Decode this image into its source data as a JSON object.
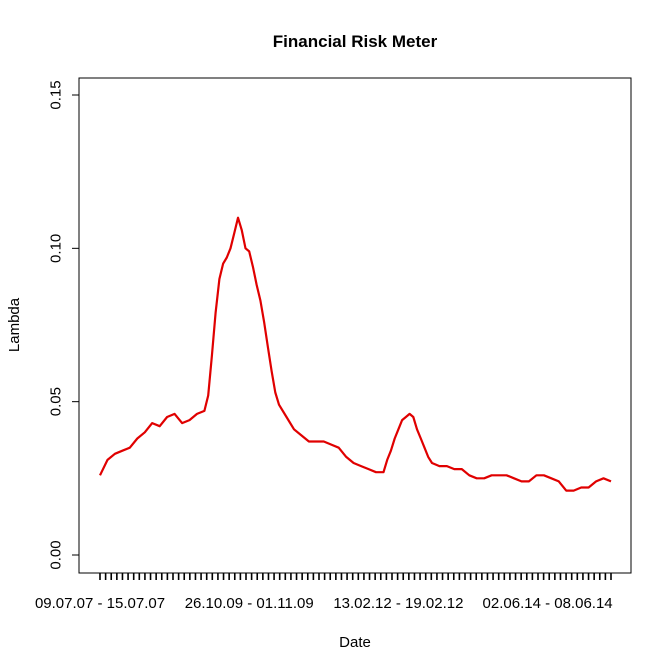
{
  "chart_data": {
    "type": "line",
    "title": "Financial Risk Meter",
    "xlabel": "Date",
    "ylabel": "Lambda",
    "ylim": [
      -0.005,
      0.155
    ],
    "y_ticks": [
      "0.00",
      "0.05",
      "0.10",
      "0.15"
    ],
    "y_tick_values": [
      0.0,
      0.05,
      0.1,
      0.15
    ],
    "x_tick_labels": [
      "09.07.07 - 15.07.07",
      "26.10.09 - 01.11.09",
      "13.02.12 - 19.02.12",
      "02.06.14 - 08.06.14"
    ],
    "x_tick_values": [
      "2007-07-09",
      "2009-10-26",
      "2012-02-13",
      "2014-06-02"
    ],
    "x_minor_tick_count": 92,
    "grid": false,
    "series": [
      {
        "color": "#e00000",
        "points": [
          [
            "2007-07-09",
            0.026
          ],
          [
            "2007-08-20",
            0.031
          ],
          [
            "2007-10-01",
            0.033
          ],
          [
            "2007-11-12",
            0.034
          ],
          [
            "2007-12-24",
            0.035
          ],
          [
            "2008-02-04",
            0.038
          ],
          [
            "2008-03-17",
            0.04
          ],
          [
            "2008-04-28",
            0.043
          ],
          [
            "2008-06-09",
            0.042
          ],
          [
            "2008-07-21",
            0.045
          ],
          [
            "2008-09-01",
            0.046
          ],
          [
            "2008-10-13",
            0.043
          ],
          [
            "2008-11-24",
            0.044
          ],
          [
            "2009-01-05",
            0.046
          ],
          [
            "2009-02-16",
            0.047
          ],
          [
            "2009-03-09",
            0.052
          ],
          [
            "2009-03-30",
            0.065
          ],
          [
            "2009-04-20",
            0.079
          ],
          [
            "2009-05-11",
            0.09
          ],
          [
            "2009-06-01",
            0.095
          ],
          [
            "2009-06-22",
            0.097
          ],
          [
            "2009-07-13",
            0.1
          ],
          [
            "2009-08-03",
            0.105
          ],
          [
            "2009-08-24",
            0.11
          ],
          [
            "2009-09-14",
            0.106
          ],
          [
            "2009-10-05",
            0.1
          ],
          [
            "2009-10-26",
            0.099
          ],
          [
            "2009-11-16",
            0.094
          ],
          [
            "2009-12-07",
            0.088
          ],
          [
            "2009-12-28",
            0.083
          ],
          [
            "2010-01-18",
            0.076
          ],
          [
            "2010-02-08",
            0.068
          ],
          [
            "2010-03-01",
            0.06
          ],
          [
            "2010-03-22",
            0.053
          ],
          [
            "2010-04-12",
            0.049
          ],
          [
            "2010-05-24",
            0.045
          ],
          [
            "2010-07-05",
            0.041
          ],
          [
            "2010-08-16",
            0.039
          ],
          [
            "2010-09-27",
            0.037
          ],
          [
            "2010-11-08",
            0.037
          ],
          [
            "2010-12-20",
            0.037
          ],
          [
            "2011-01-31",
            0.036
          ],
          [
            "2011-03-14",
            0.035
          ],
          [
            "2011-04-25",
            0.032
          ],
          [
            "2011-06-06",
            0.03
          ],
          [
            "2011-07-18",
            0.029
          ],
          [
            "2011-08-29",
            0.028
          ],
          [
            "2011-10-10",
            0.027
          ],
          [
            "2011-11-21",
            0.027
          ],
          [
            "2011-12-12",
            0.031
          ],
          [
            "2012-01-02",
            0.034
          ],
          [
            "2012-01-23",
            0.038
          ],
          [
            "2012-02-13",
            0.041
          ],
          [
            "2012-03-05",
            0.044
          ],
          [
            "2012-03-26",
            0.045
          ],
          [
            "2012-04-16",
            0.046
          ],
          [
            "2012-05-07",
            0.045
          ],
          [
            "2012-05-28",
            0.041
          ],
          [
            "2012-06-18",
            0.038
          ],
          [
            "2012-07-09",
            0.035
          ],
          [
            "2012-07-30",
            0.032
          ],
          [
            "2012-08-20",
            0.03
          ],
          [
            "2012-10-01",
            0.029
          ],
          [
            "2012-11-12",
            0.029
          ],
          [
            "2012-12-24",
            0.028
          ],
          [
            "2013-02-04",
            0.028
          ],
          [
            "2013-03-18",
            0.026
          ],
          [
            "2013-04-29",
            0.025
          ],
          [
            "2013-06-10",
            0.025
          ],
          [
            "2013-07-22",
            0.026
          ],
          [
            "2013-09-02",
            0.026
          ],
          [
            "2013-10-14",
            0.026
          ],
          [
            "2013-11-25",
            0.025
          ],
          [
            "2014-01-06",
            0.024
          ],
          [
            "2014-02-17",
            0.024
          ],
          [
            "2014-03-31",
            0.026
          ],
          [
            "2014-05-12",
            0.026
          ],
          [
            "2014-06-23",
            0.025
          ],
          [
            "2014-08-04",
            0.024
          ],
          [
            "2014-09-15",
            0.021
          ],
          [
            "2014-10-27",
            0.021
          ],
          [
            "2014-12-08",
            0.022
          ],
          [
            "2015-01-19",
            0.022
          ],
          [
            "2015-03-02",
            0.024
          ],
          [
            "2015-04-13",
            0.025
          ],
          [
            "2015-05-25",
            0.024
          ]
        ]
      }
    ]
  }
}
